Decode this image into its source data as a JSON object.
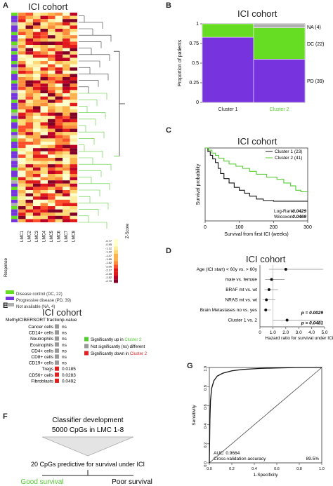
{
  "panelA": {
    "letter": "A",
    "title": "ICI cohort",
    "columns": [
      "LMC1",
      "LMC2",
      "LMC3",
      "LMC4",
      "LMC5",
      "LMC6",
      "LMC7",
      "LMC8"
    ],
    "response_label": "Response",
    "zscore_label": "Z-Score",
    "zscore_ticks": [
      "-0.77",
      "-0.95",
      "-1.12",
      "-1.22",
      "-1.47",
      "-1.65",
      "-1.82",
      "-2.00",
      "-2.17",
      "-2.35",
      "-2.52",
      "-2.70"
    ],
    "legend": [
      {
        "label": "Disease control (DC, 22)",
        "color": "#66dd22"
      },
      {
        "label": "Progressive disease (PD, 39)",
        "color": "#7733dd"
      },
      {
        "label": "Not available (NA, 4)",
        "color": "#b0b0b0"
      }
    ],
    "colors": {
      "cluster1": "#333333",
      "cluster2": "#55cc33"
    }
  },
  "panelB": {
    "letter": "B",
    "title": "ICI cohort",
    "chart_data": {
      "type": "bar",
      "categories": [
        "Cluster 1",
        "Cluster 2"
      ],
      "ylabel": "Proportion of patients",
      "yticks": [
        "0",
        "0.25",
        "0.5",
        "0.75",
        "1"
      ],
      "series": [
        {
          "name": "PD (39)",
          "values": [
            0.83,
            0.55
          ],
          "color": "#7733dd"
        },
        {
          "name": "DC (22)",
          "values": [
            0.17,
            0.4
          ],
          "color": "#66dd22"
        },
        {
          "name": "NA (4)",
          "values": [
            0.0,
            0.05
          ],
          "color": "#b0b0b0"
        }
      ]
    }
  },
  "panelC": {
    "letter": "C",
    "title": "ICI cohort",
    "chart_data": {
      "type": "line",
      "xlabel": "Survival from first ICI (weeks)",
      "ylabel": "Survival probability",
      "xlim": [
        0,
        300
      ],
      "ylim": [
        0,
        1
      ],
      "xticks": [
        "0",
        "100",
        "200",
        "300"
      ],
      "series": [
        {
          "name": "Cluster 1 (23)",
          "color": "#111111",
          "x": [
            0,
            8,
            15,
            22,
            30,
            38,
            45,
            55,
            70,
            85,
            100,
            115,
            130,
            150,
            170,
            200,
            230,
            260,
            300
          ],
          "y": [
            1.0,
            0.95,
            0.9,
            0.85,
            0.8,
            0.72,
            0.65,
            0.58,
            0.52,
            0.46,
            0.42,
            0.38,
            0.34,
            0.3,
            0.28,
            0.27,
            0.27,
            0.27,
            0.27
          ]
        },
        {
          "name": "Cluster 2 (41)",
          "color": "#55cc33",
          "x": [
            0,
            10,
            20,
            30,
            40,
            55,
            70,
            90,
            110,
            130,
            150,
            180,
            210,
            230,
            250,
            265,
            280,
            300
          ],
          "y": [
            1.0,
            0.97,
            0.93,
            0.9,
            0.86,
            0.82,
            0.78,
            0.75,
            0.72,
            0.68,
            0.64,
            0.6,
            0.57,
            0.52,
            0.48,
            0.42,
            0.4,
            0.4
          ]
        }
      ],
      "annotations": [
        {
          "label": "Log-Rank:",
          "value": "0.0429"
        },
        {
          "label": "Wilcoxon:",
          "value": "0.0469"
        }
      ]
    }
  },
  "panelD": {
    "letter": "D",
    "title": "ICI cohort",
    "chart_data": {
      "type": "scatter",
      "xlabel": "Hazard ratio for survival under ICI",
      "xlim": [
        0,
        5
      ],
      "xticks": [
        "0",
        "1.0",
        "2.0",
        "3.0",
        "4.0",
        "5.0"
      ],
      "rows": [
        {
          "label": "Age (ICI start) < 60y vs. > 60y",
          "hr": 2.0,
          "lo": 0.7,
          "hi": 4.9,
          "p": ""
        },
        {
          "label": "male vs. female",
          "hr": 0.9,
          "lo": 0.4,
          "hi": 1.9,
          "p": ""
        },
        {
          "label": "BRAF mt vs. wt",
          "hr": 0.7,
          "lo": 0.35,
          "hi": 1.4,
          "p": ""
        },
        {
          "label": "NRAS mt vs. wt",
          "hr": 0.5,
          "lo": 0.2,
          "hi": 1.2,
          "p": ""
        },
        {
          "label": "Brain Metastases no vs. yes",
          "hr": 0.45,
          "lo": 0.3,
          "hi": 0.85,
          "p": "p = 0.0029"
        },
        {
          "label": "Cluster 1 vs. 2",
          "hr": 2.1,
          "lo": 1.0,
          "hi": 4.8,
          "p": "p = 0.0481"
        }
      ]
    }
  },
  "panelE": {
    "letter": "E",
    "title": "ICI cohort",
    "col_fraction": "MethylCIBERSORT fraction",
    "col_p": "p-value",
    "rows": [
      {
        "name": "Cancer cells",
        "p": "ns",
        "color": "#999999"
      },
      {
        "name": "CD14+ cells",
        "p": "ns",
        "color": "#999999"
      },
      {
        "name": "Neutrophils",
        "p": "ns",
        "color": "#999999"
      },
      {
        "name": "Eosinophils",
        "p": "ns",
        "color": "#999999"
      },
      {
        "name": "CD4+ cells",
        "p": "ns",
        "color": "#999999"
      },
      {
        "name": "CD8+ cells",
        "p": "ns",
        "color": "#999999"
      },
      {
        "name": "CD19+ cells",
        "p": "ns",
        "color": "#999999"
      },
      {
        "name": "Tregs",
        "p": "0.0185",
        "color": "#dd2222"
      },
      {
        "name": "CD56+ cells",
        "p": "0.0283",
        "color": "#dd2222"
      },
      {
        "name": "Fibroblasts",
        "p": "0.0492",
        "color": "#dd2222"
      }
    ],
    "legend": [
      {
        "pre": "Significantly up in ",
        "hl": "Cluster 2",
        "color": "#55cc33"
      },
      {
        "pre": "Not significantly (ns) different",
        "hl": "",
        "color": "#999999"
      },
      {
        "pre": "Significantly down in ",
        "hl": "Cluster 2",
        "color": "#dd2222"
      }
    ]
  },
  "panelF": {
    "letter": "F",
    "line1": "Classifier development",
    "line2": "5000 CpGs in LMC 1-8",
    "line3": "20 CpGs predictive for survival under ICI",
    "good": "Good survival",
    "poor": "Poor survival",
    "good_color": "#55cc33"
  },
  "panelG": {
    "letter": "G",
    "chart_data": {
      "type": "line",
      "xlabel": "1-Specificity",
      "ylabel": "Sensitivity",
      "xlim": [
        0,
        1
      ],
      "ylim": [
        0,
        1
      ],
      "xticks": [
        "0.0",
        "0.2",
        "0.4",
        "0.6",
        "0.8",
        "1.0"
      ],
      "yticks": [
        "0.0",
        "0.2",
        "0.4",
        "0.6",
        "0.8",
        "1.0"
      ],
      "x": [
        0,
        0.005,
        0.01,
        0.02,
        0.04,
        0.07,
        0.12,
        0.2,
        0.3,
        0.45,
        0.6,
        0.8,
        1.0
      ],
      "y": [
        0,
        0.45,
        0.65,
        0.78,
        0.86,
        0.91,
        0.94,
        0.965,
        0.98,
        0.99,
        0.995,
        1.0,
        1.0
      ],
      "auc_label": "AUC: 0.9664",
      "cv_label": "Cross-validation accuracy",
      "cv_value": "89.5%"
    }
  }
}
